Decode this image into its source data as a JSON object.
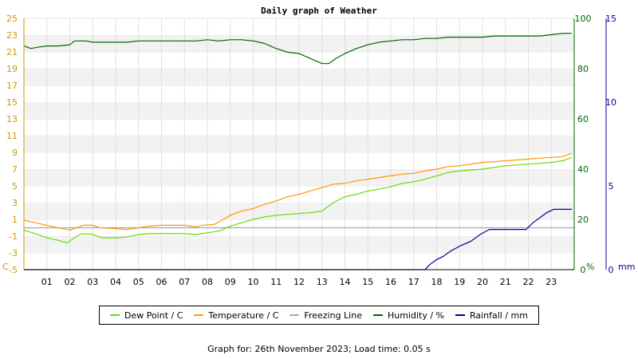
{
  "chart_data": {
    "type": "line",
    "title": "Daily graph of Weather",
    "axes": {
      "left": {
        "unit_label": "C",
        "min": -5,
        "max": 25,
        "ticks": [
          -5,
          -3,
          -1,
          1,
          3,
          5,
          7,
          9,
          11,
          13,
          15,
          17,
          19,
          21,
          23,
          25
        ],
        "color": "#cc9900"
      },
      "right1": {
        "unit_label": "%",
        "min": 0,
        "max": 100,
        "ticks": [
          0,
          20,
          40,
          60,
          80,
          100
        ],
        "color": "#006600"
      },
      "right2": {
        "unit_label": "mm",
        "min": 0,
        "max": 15,
        "ticks": [
          0,
          5,
          10,
          15
        ],
        "color": "#000099"
      },
      "x": {
        "min": 0,
        "max": 24,
        "tick_labels": [
          "01",
          "02",
          "03",
          "04",
          "05",
          "06",
          "07",
          "08",
          "09",
          "10",
          "11",
          "12",
          "13",
          "14",
          "15",
          "16",
          "17",
          "18",
          "19",
          "20",
          "21",
          "22",
          "23"
        ]
      }
    },
    "grid": true,
    "legend_position": "bottom",
    "series": [
      {
        "name": "Dew Point / C",
        "color": "#66dd00",
        "axis": "left",
        "points": [
          [
            0,
            -0.3
          ],
          [
            0.5,
            -0.7
          ],
          [
            1,
            -1.2
          ],
          [
            1.5,
            -1.5
          ],
          [
            1.9,
            -1.8
          ],
          [
            2.2,
            -1.2
          ],
          [
            2.5,
            -0.7
          ],
          [
            3,
            -0.8
          ],
          [
            3.4,
            -1.2
          ],
          [
            4,
            -1.2
          ],
          [
            4.5,
            -1.1
          ],
          [
            5,
            -0.8
          ],
          [
            5.5,
            -0.7
          ],
          [
            6,
            -0.7
          ],
          [
            6.5,
            -0.7
          ],
          [
            7,
            -0.7
          ],
          [
            7.5,
            -0.8
          ],
          [
            8,
            -0.6
          ],
          [
            8.5,
            -0.4
          ],
          [
            9,
            0.2
          ],
          [
            9.5,
            0.6
          ],
          [
            10,
            1.0
          ],
          [
            10.5,
            1.3
          ],
          [
            11,
            1.5
          ],
          [
            11.5,
            1.6
          ],
          [
            12,
            1.7
          ],
          [
            12.5,
            1.8
          ],
          [
            13,
            2.0
          ],
          [
            13.5,
            3.0
          ],
          [
            14,
            3.7
          ],
          [
            14.5,
            4.0
          ],
          [
            15,
            4.4
          ],
          [
            15.5,
            4.6
          ],
          [
            16,
            4.9
          ],
          [
            16.5,
            5.3
          ],
          [
            17,
            5.5
          ],
          [
            17.5,
            5.8
          ],
          [
            18,
            6.2
          ],
          [
            18.5,
            6.6
          ],
          [
            19,
            6.8
          ],
          [
            19.5,
            6.9
          ],
          [
            20,
            7.0
          ],
          [
            20.5,
            7.2
          ],
          [
            21,
            7.4
          ],
          [
            21.5,
            7.5
          ],
          [
            22,
            7.6
          ],
          [
            22.5,
            7.7
          ],
          [
            23,
            7.8
          ],
          [
            23.5,
            8.0
          ],
          [
            23.9,
            8.4
          ]
        ]
      },
      {
        "name": "Temperature / C",
        "color": "#ff9900",
        "axis": "left",
        "points": [
          [
            0,
            0.9
          ],
          [
            0.5,
            0.6
          ],
          [
            1,
            0.3
          ],
          [
            1.5,
            0.0
          ],
          [
            2,
            -0.3
          ],
          [
            2.3,
            0.0
          ],
          [
            2.6,
            0.3
          ],
          [
            3,
            0.3
          ],
          [
            3.3,
            0.0
          ],
          [
            4,
            -0.1
          ],
          [
            4.5,
            -0.2
          ],
          [
            5,
            0.0
          ],
          [
            5.5,
            0.2
          ],
          [
            6,
            0.3
          ],
          [
            6.5,
            0.3
          ],
          [
            7,
            0.3
          ],
          [
            7.5,
            0.1
          ],
          [
            7.8,
            0.3
          ],
          [
            8.3,
            0.4
          ],
          [
            8.7,
            1.0
          ],
          [
            9,
            1.5
          ],
          [
            9.5,
            2.0
          ],
          [
            10,
            2.3
          ],
          [
            10.5,
            2.8
          ],
          [
            11,
            3.2
          ],
          [
            11.5,
            3.7
          ],
          [
            12,
            4.0
          ],
          [
            12.5,
            4.4
          ],
          [
            13,
            4.8
          ],
          [
            13.5,
            5.2
          ],
          [
            14,
            5.3
          ],
          [
            14.5,
            5.6
          ],
          [
            15,
            5.8
          ],
          [
            15.5,
            6.0
          ],
          [
            16,
            6.2
          ],
          [
            16.5,
            6.4
          ],
          [
            17,
            6.5
          ],
          [
            17.5,
            6.8
          ],
          [
            18,
            7.0
          ],
          [
            18.5,
            7.3
          ],
          [
            19,
            7.4
          ],
          [
            19.5,
            7.6
          ],
          [
            20,
            7.8
          ],
          [
            20.5,
            7.9
          ],
          [
            21,
            8.0
          ],
          [
            21.5,
            8.1
          ],
          [
            22,
            8.2
          ],
          [
            22.5,
            8.3
          ],
          [
            23,
            8.4
          ],
          [
            23.5,
            8.5
          ],
          [
            23.9,
            8.9
          ]
        ]
      },
      {
        "name": "Freezing Line",
        "color": "#99aacc",
        "axis": "left",
        "points": [
          [
            0,
            0
          ],
          [
            24,
            0
          ]
        ]
      },
      {
        "name": "Humidity / %",
        "color": "#006600",
        "axis": "right1",
        "points": [
          [
            0,
            89
          ],
          [
            0.3,
            88
          ],
          [
            0.6,
            88.5
          ],
          [
            1,
            89
          ],
          [
            1.5,
            89
          ],
          [
            2,
            89.5
          ],
          [
            2.2,
            91
          ],
          [
            2.7,
            91
          ],
          [
            3,
            90.5
          ],
          [
            3.5,
            90.5
          ],
          [
            4,
            90.5
          ],
          [
            4.5,
            90.5
          ],
          [
            5,
            91
          ],
          [
            6,
            91
          ],
          [
            7,
            91
          ],
          [
            7.5,
            91
          ],
          [
            8,
            91.5
          ],
          [
            8.5,
            91
          ],
          [
            9,
            91.5
          ],
          [
            9.5,
            91.5
          ],
          [
            10,
            91
          ],
          [
            10.5,
            90
          ],
          [
            11,
            88
          ],
          [
            11.5,
            86.5
          ],
          [
            12,
            86
          ],
          [
            12.5,
            84
          ],
          [
            13,
            82
          ],
          [
            13.3,
            82
          ],
          [
            13.6,
            84
          ],
          [
            14,
            86
          ],
          [
            14.5,
            88
          ],
          [
            15,
            89.5
          ],
          [
            15.5,
            90.5
          ],
          [
            16,
            91
          ],
          [
            16.5,
            91.5
          ],
          [
            17,
            91.5
          ],
          [
            17.5,
            92
          ],
          [
            18,
            92
          ],
          [
            18.5,
            92.5
          ],
          [
            19,
            92.5
          ],
          [
            20,
            92.5
          ],
          [
            20.5,
            93
          ],
          [
            21,
            93
          ],
          [
            22,
            93
          ],
          [
            22.5,
            93
          ],
          [
            23,
            93.5
          ],
          [
            23.5,
            94
          ],
          [
            23.9,
            94
          ]
        ]
      },
      {
        "name": "Rainfall / mm",
        "color": "#000099",
        "axis": "right2",
        "points": [
          [
            0,
            0
          ],
          [
            17,
            0
          ],
          [
            17.5,
            0
          ],
          [
            17.7,
            0.3
          ],
          [
            18,
            0.6
          ],
          [
            18.3,
            0.8
          ],
          [
            18.6,
            1.1
          ],
          [
            19,
            1.4
          ],
          [
            19.5,
            1.7
          ],
          [
            19.9,
            2.1
          ],
          [
            20.3,
            2.4
          ],
          [
            20.7,
            2.4
          ],
          [
            21,
            2.4
          ],
          [
            21.5,
            2.4
          ],
          [
            21.9,
            2.4
          ],
          [
            22.2,
            2.8
          ],
          [
            22.5,
            3.1
          ],
          [
            22.8,
            3.4
          ],
          [
            23.1,
            3.6
          ],
          [
            23.9,
            3.6
          ]
        ]
      }
    ],
    "legend": [
      {
        "label": "Dew Point / C",
        "color": "#66dd00"
      },
      {
        "label": "Temperature / C",
        "color": "#ff9900"
      },
      {
        "label": "Freezing Line",
        "color": "#99aacc"
      },
      {
        "label": "Humidity / %",
        "color": "#006600"
      },
      {
        "label": "Rainfall / mm",
        "color": "#000099"
      }
    ]
  },
  "footer": "Graph for: 26th November 2023; Load time: 0.05 s"
}
